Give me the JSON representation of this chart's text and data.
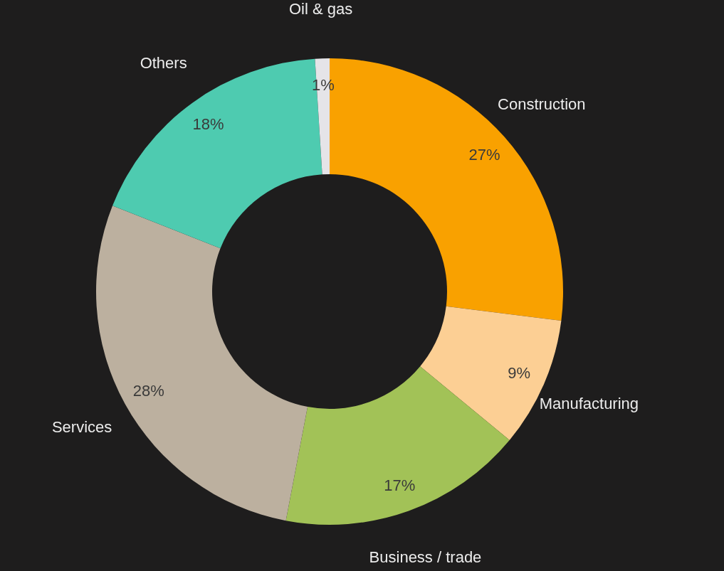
{
  "chart_data": {
    "type": "donut",
    "categories": [
      "Construction",
      "Manufacturing",
      "Business / trade",
      "Services",
      "Others",
      "Oil & gas"
    ],
    "values": [
      27,
      9,
      17,
      28,
      18,
      1
    ],
    "colors": [
      "#f9a100",
      "#fccf94",
      "#a2c257",
      "#bcb09f",
      "#4ecbb0",
      "#e5e4e8"
    ],
    "value_labels": [
      "27%",
      "9%",
      "17%",
      "28%",
      "18%",
      "1%"
    ]
  }
}
